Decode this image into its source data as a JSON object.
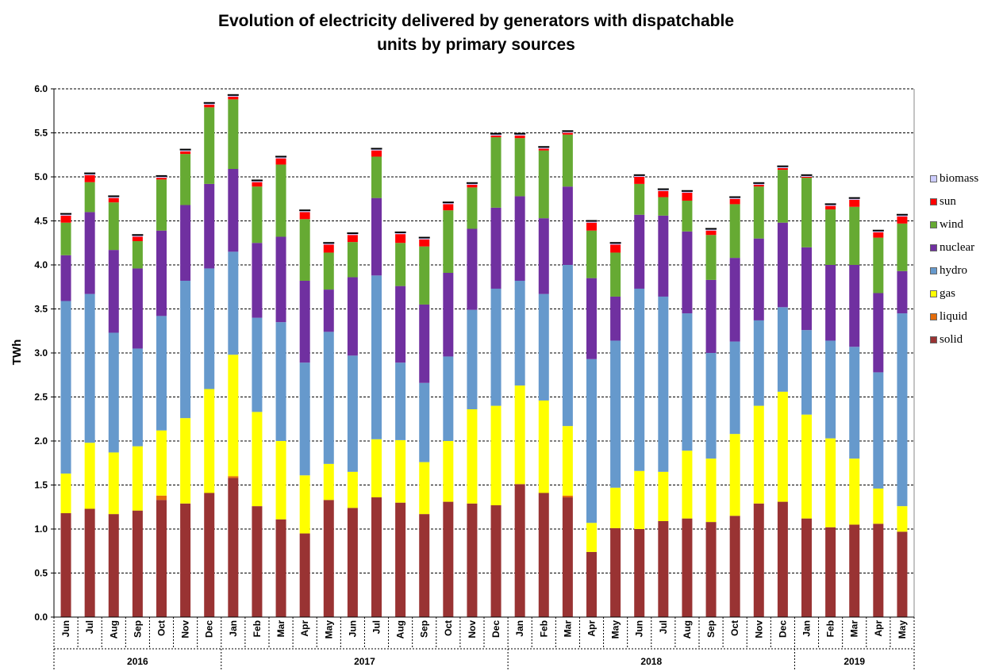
{
  "chart_data": {
    "type": "bar",
    "stacked": true,
    "title": [
      "Evolution of electricity delivered by generators with dispatchable",
      "units by primary sources"
    ],
    "ylabel": "TWh",
    "ylim": [
      0,
      6.0
    ],
    "yticks": [
      "0.0",
      "0.5",
      "1.0",
      "1.5",
      "2.0",
      "2.5",
      "3.0",
      "3.5",
      "4.0",
      "4.5",
      "5.0",
      "5.5",
      "6.0"
    ],
    "grid": "horizontal dashed",
    "legend_position": "right",
    "categories": [
      "Jun",
      "Jul",
      "Aug",
      "Sep",
      "Oct",
      "Nov",
      "Dec",
      "Jan",
      "Feb",
      "Mar",
      "Apr",
      "May",
      "Jun",
      "Jul",
      "Aug",
      "Sep",
      "Oct",
      "Nov",
      "Dec",
      "Jan",
      "Feb",
      "Mar",
      "Apr",
      "May",
      "Jun",
      "Jul",
      "Aug",
      "Sep",
      "Oct",
      "Nov",
      "Dec",
      "Jan",
      "Feb",
      "Mar",
      "Apr",
      "May"
    ],
    "years": [
      {
        "label": "2016",
        "start": 0,
        "count": 7
      },
      {
        "label": "2017",
        "start": 7,
        "count": 12
      },
      {
        "label": "2018",
        "start": 19,
        "count": 12
      },
      {
        "label": "2019",
        "start": 31,
        "count": 5
      }
    ],
    "series": [
      {
        "name": "solid",
        "color": "#993333",
        "values": [
          1.18,
          1.23,
          1.17,
          1.21,
          1.33,
          1.29,
          1.41,
          1.58,
          1.26,
          1.11,
          0.95,
          1.33,
          1.24,
          1.36,
          1.3,
          1.17,
          1.31,
          1.29,
          1.27,
          1.51,
          1.41,
          1.36,
          0.74,
          1.01,
          1.0,
          1.09,
          1.12,
          1.08,
          1.15,
          1.29,
          1.31,
          1.12,
          1.02,
          1.05,
          1.06,
          0.97
        ]
      },
      {
        "name": "liquid",
        "color": "#E46C0A",
        "values": [
          0.0,
          0.0,
          0.0,
          0.0,
          0.05,
          0.0,
          0.0,
          0.02,
          0.0,
          0.0,
          0.0,
          0.0,
          0.0,
          0.0,
          0.0,
          0.0,
          0.0,
          0.0,
          0.0,
          0.0,
          0.0,
          0.02,
          0.0,
          0.0,
          0.0,
          0.0,
          0.0,
          0.0,
          0.0,
          0.0,
          0.0,
          0.0,
          0.0,
          0.0,
          0.0,
          0.0
        ]
      },
      {
        "name": "gas",
        "color": "#FFFF00",
        "values": [
          0.45,
          0.75,
          0.7,
          0.73,
          0.74,
          0.97,
          1.18,
          1.38,
          1.07,
          0.89,
          0.66,
          0.41,
          0.41,
          0.66,
          0.71,
          0.59,
          0.69,
          1.07,
          1.13,
          1.12,
          1.05,
          0.79,
          0.33,
          0.46,
          0.66,
          0.56,
          0.77,
          0.72,
          0.93,
          1.11,
          1.25,
          1.18,
          1.01,
          0.75,
          0.4,
          0.29
        ]
      },
      {
        "name": "hydro",
        "color": "#6699CC",
        "values": [
          1.96,
          1.69,
          1.36,
          1.11,
          1.3,
          1.56,
          1.37,
          1.17,
          1.07,
          1.35,
          1.28,
          1.5,
          1.32,
          1.86,
          0.88,
          0.9,
          0.96,
          1.13,
          1.33,
          1.19,
          1.21,
          1.83,
          1.86,
          1.67,
          2.07,
          1.99,
          1.56,
          1.2,
          1.05,
          0.97,
          0.96,
          0.96,
          1.11,
          1.27,
          1.32,
          2.19
        ]
      },
      {
        "name": "nuclear",
        "color": "#7030A0",
        "values": [
          0.52,
          0.93,
          0.94,
          0.91,
          0.97,
          0.86,
          0.96,
          0.94,
          0.85,
          0.97,
          0.93,
          0.48,
          0.89,
          0.88,
          0.87,
          0.89,
          0.95,
          0.92,
          0.92,
          0.96,
          0.86,
          0.89,
          0.92,
          0.5,
          0.84,
          0.92,
          0.93,
          0.83,
          0.95,
          0.93,
          0.96,
          0.94,
          0.86,
          0.93,
          0.9,
          0.48
        ]
      },
      {
        "name": "wind",
        "color": "#66AA33",
        "values": [
          0.37,
          0.34,
          0.54,
          0.31,
          0.58,
          0.58,
          0.87,
          0.79,
          0.64,
          0.82,
          0.7,
          0.42,
          0.4,
          0.47,
          0.49,
          0.66,
          0.71,
          0.47,
          0.8,
          0.66,
          0.77,
          0.59,
          0.54,
          0.5,
          0.35,
          0.21,
          0.35,
          0.51,
          0.61,
          0.59,
          0.6,
          0.79,
          0.63,
          0.66,
          0.63,
          0.54
        ]
      },
      {
        "name": "sun",
        "color": "#FF0000",
        "values": [
          0.08,
          0.08,
          0.05,
          0.05,
          0.02,
          0.03,
          0.03,
          0.03,
          0.05,
          0.07,
          0.08,
          0.09,
          0.08,
          0.07,
          0.1,
          0.08,
          0.07,
          0.03,
          0.02,
          0.03,
          0.02,
          0.02,
          0.09,
          0.09,
          0.08,
          0.07,
          0.09,
          0.05,
          0.06,
          0.02,
          0.02,
          0.01,
          0.04,
          0.08,
          0.06,
          0.08
        ]
      },
      {
        "name": "biomass",
        "color": "#CCCCFF",
        "values": [
          0.02,
          0.02,
          0.02,
          0.02,
          0.02,
          0.02,
          0.02,
          0.02,
          0.02,
          0.02,
          0.02,
          0.02,
          0.02,
          0.02,
          0.02,
          0.02,
          0.02,
          0.02,
          0.02,
          0.02,
          0.02,
          0.02,
          0.02,
          0.02,
          0.02,
          0.02,
          0.02,
          0.02,
          0.02,
          0.02,
          0.02,
          0.02,
          0.02,
          0.02,
          0.02,
          0.02
        ]
      }
    ],
    "legend_order": [
      "biomass",
      "sun",
      "wind",
      "nuclear",
      "hydro",
      "gas",
      "liquid",
      "solid"
    ]
  }
}
